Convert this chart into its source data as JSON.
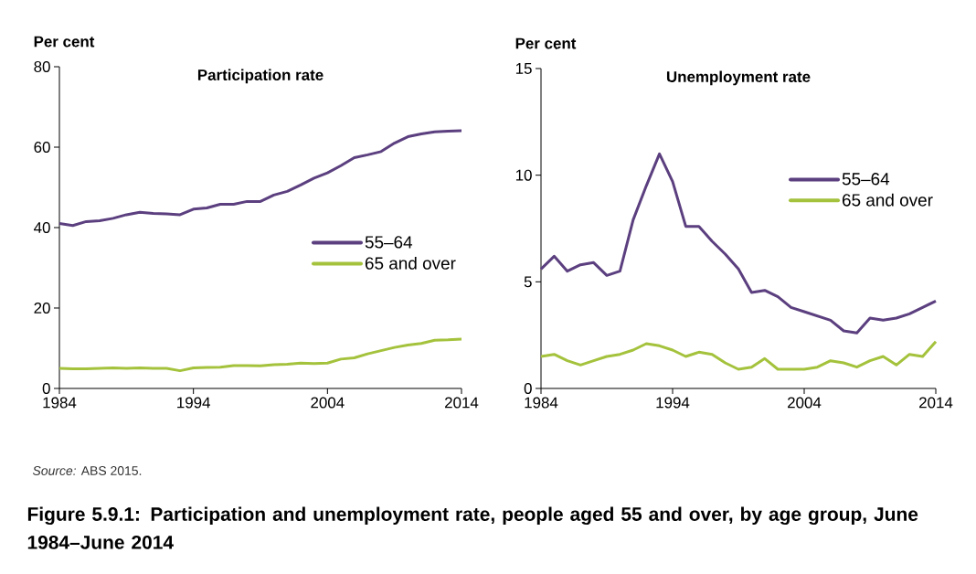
{
  "chart_data": [
    {
      "type": "line",
      "title": "Participation rate",
      "ylabel": "Per cent",
      "x": [
        1984,
        1985,
        1986,
        1987,
        1988,
        1989,
        1990,
        1991,
        1992,
        1993,
        1994,
        1995,
        1996,
        1997,
        1998,
        1999,
        2000,
        2001,
        2002,
        2003,
        2004,
        2005,
        2006,
        2007,
        2008,
        2009,
        2010,
        2011,
        2012,
        2013,
        2014
      ],
      "series": [
        {
          "name": "55–64",
          "color": "#5b3f7f",
          "values": [
            41.0,
            40.5,
            41.5,
            41.7,
            42.3,
            43.2,
            43.8,
            43.5,
            43.4,
            43.2,
            44.6,
            44.9,
            45.8,
            45.8,
            46.5,
            46.5,
            48.1,
            49.0,
            50.6,
            52.3,
            53.6,
            55.4,
            57.4,
            58.1,
            58.9,
            61.0,
            62.6,
            63.3,
            63.8,
            64.0,
            64.1
          ]
        },
        {
          "name": "65 and over",
          "color": "#a4c23c",
          "values": [
            5.0,
            4.9,
            4.9,
            5.0,
            5.1,
            5.0,
            5.1,
            5.0,
            5.0,
            4.4,
            5.1,
            5.2,
            5.3,
            5.7,
            5.7,
            5.6,
            5.9,
            6.0,
            6.3,
            6.2,
            6.3,
            7.3,
            7.6,
            8.6,
            9.4,
            10.2,
            10.8,
            11.2,
            12.0,
            12.1,
            12.3
          ]
        }
      ],
      "xlim": [
        1984,
        2014
      ],
      "ylim": [
        0,
        80
      ],
      "xticks": [
        1984,
        1994,
        2004,
        2014
      ],
      "yticks": [
        0,
        20,
        40,
        60,
        80
      ],
      "legend": "right",
      "annotations": [
        "*Source:* ABS 2015.",
        "Figure 5.9.1: Participation and unemployment rate, people aged 55 and over, by age group, June 1984–June 2014"
      ]
    },
    {
      "type": "line",
      "title": "Unemployment rate",
      "ylabel": "Per cent",
      "x": [
        1984,
        1985,
        1986,
        1987,
        1988,
        1989,
        1990,
        1991,
        1992,
        1993,
        1994,
        1995,
        1996,
        1997,
        1998,
        1999,
        2000,
        2001,
        2002,
        2003,
        2004,
        2005,
        2006,
        2007,
        2008,
        2009,
        2010,
        2011,
        2012,
        2013,
        2014
      ],
      "series": [
        {
          "name": "55–64",
          "color": "#5b3f7f",
          "values": [
            5.6,
            6.2,
            5.5,
            5.8,
            5.9,
            5.3,
            5.5,
            7.9,
            9.5,
            11.0,
            9.7,
            7.6,
            7.6,
            6.9,
            6.3,
            5.6,
            4.5,
            4.6,
            4.3,
            3.8,
            3.6,
            3.4,
            3.2,
            2.7,
            2.6,
            3.3,
            3.2,
            3.3,
            3.5,
            3.8,
            4.1
          ]
        },
        {
          "name": "65 and over",
          "color": "#a4c23c",
          "values": [
            1.5,
            1.6,
            1.3,
            1.1,
            1.3,
            1.5,
            1.6,
            1.8,
            2.1,
            2.0,
            1.8,
            1.5,
            1.7,
            1.6,
            1.2,
            0.9,
            1.0,
            1.4,
            0.9,
            0.9,
            0.9,
            1.0,
            1.3,
            1.2,
            1.0,
            1.3,
            1.5,
            1.1,
            1.6,
            1.5,
            2.2
          ]
        }
      ],
      "xlim": [
        1984,
        2014
      ],
      "ylim": [
        0,
        15
      ],
      "xticks": [
        1984,
        1994,
        2004,
        2014
      ],
      "yticks": [
        0,
        5,
        10,
        15
      ],
      "legend": "top right"
    }
  ]
}
